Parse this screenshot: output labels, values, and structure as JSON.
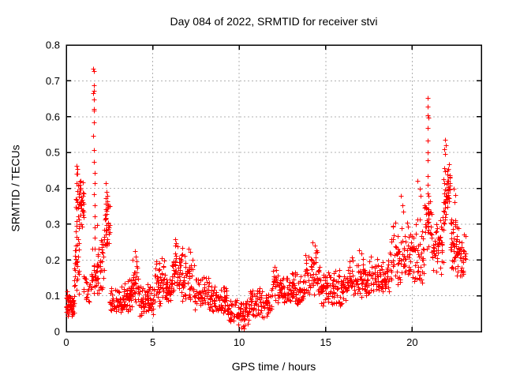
{
  "figure": {
    "title": "Day 084 of 2022, SRMTID for receiver stvi",
    "xlabel": "GPS time / hours",
    "ylabel": "SRMTID / TECUs"
  },
  "chart_data": {
    "type": "scatter",
    "title": "Day 084 of 2022, SRMTID for receiver stvi",
    "xlabel": "GPS time / hours",
    "ylabel": "SRMTID / TECUs",
    "series_name": "SRMTID",
    "xlim": [
      0,
      24
    ],
    "ylim": [
      0,
      0.8
    ],
    "xticks": [
      0,
      5,
      10,
      15,
      20
    ],
    "xtick_labels": [
      "0",
      "5",
      "10",
      "15",
      "20"
    ],
    "yticks": [
      0,
      0.1,
      0.2,
      0.3,
      0.4,
      0.5,
      0.6,
      0.7,
      0.8
    ],
    "ytick_labels": [
      "0",
      "0.1",
      "0.2",
      "0.3",
      "0.4",
      "0.5",
      "0.6",
      "0.7",
      "0.8"
    ],
    "grid": true,
    "legend": "none",
    "marker": "plus",
    "marker_color": "#ff0000",
    "grid_color": "#b0b0b0",
    "axis_color": "#000000",
    "background_color": "#ffffff",
    "band_segments": [
      [
        0.0,
        0.45,
        0.03,
        0.12,
        60
      ],
      [
        0.45,
        0.75,
        0.1,
        0.3,
        30
      ],
      [
        0.55,
        1.0,
        0.28,
        0.46,
        55
      ],
      [
        0.95,
        1.45,
        0.07,
        0.18,
        25
      ],
      [
        1.45,
        1.8,
        0.1,
        0.25,
        25
      ],
      [
        1.75,
        2.2,
        0.1,
        0.32,
        40
      ],
      [
        2.2,
        2.5,
        0.22,
        0.4,
        35
      ],
      [
        2.5,
        3.3,
        0.05,
        0.13,
        55
      ],
      [
        3.3,
        3.8,
        0.05,
        0.16,
        45
      ],
      [
        3.8,
        4.2,
        0.08,
        0.215,
        35
      ],
      [
        4.2,
        5.1,
        0.04,
        0.14,
        65
      ],
      [
        5.1,
        5.7,
        0.07,
        0.22,
        45
      ],
      [
        5.7,
        6.1,
        0.07,
        0.17,
        35
      ],
      [
        6.1,
        6.7,
        0.1,
        0.25,
        50
      ],
      [
        6.7,
        7.4,
        0.08,
        0.225,
        50
      ],
      [
        7.4,
        8.6,
        0.05,
        0.16,
        80
      ],
      [
        8.6,
        9.3,
        0.04,
        0.145,
        50
      ],
      [
        9.3,
        10.6,
        0.015,
        0.1,
        85
      ],
      [
        10.6,
        11.9,
        0.04,
        0.13,
        85
      ],
      [
        11.9,
        12.6,
        0.07,
        0.2,
        50
      ],
      [
        12.6,
        13.8,
        0.07,
        0.17,
        80
      ],
      [
        13.8,
        14.7,
        0.09,
        0.235,
        60
      ],
      [
        14.7,
        16.3,
        0.07,
        0.18,
        100
      ],
      [
        16.3,
        17.6,
        0.09,
        0.21,
        80
      ],
      [
        17.6,
        18.7,
        0.1,
        0.22,
        70
      ],
      [
        18.7,
        19.7,
        0.12,
        0.33,
        65
      ],
      [
        19.7,
        20.7,
        0.13,
        0.33,
        65
      ],
      [
        20.7,
        21.1,
        0.22,
        0.42,
        30
      ],
      [
        21.1,
        21.8,
        0.15,
        0.35,
        55
      ],
      [
        21.8,
        22.2,
        0.28,
        0.5,
        45
      ],
      [
        22.2,
        22.7,
        0.15,
        0.35,
        45
      ],
      [
        22.7,
        23.1,
        0.15,
        0.3,
        30
      ]
    ],
    "spike_points": [
      [
        0.6,
        0.462
      ],
      [
        0.63,
        0.455
      ],
      [
        0.66,
        0.44
      ],
      [
        1.57,
        0.733
      ],
      [
        1.6,
        0.728
      ],
      [
        1.58,
        0.688
      ],
      [
        1.59,
        0.672
      ],
      [
        1.57,
        0.665
      ],
      [
        1.6,
        0.649
      ],
      [
        1.58,
        0.622
      ],
      [
        1.6,
        0.616
      ],
      [
        1.59,
        0.583
      ],
      [
        1.57,
        0.546
      ],
      [
        1.58,
        0.506
      ],
      [
        1.6,
        0.474
      ],
      [
        1.62,
        0.444
      ],
      [
        1.63,
        0.414
      ],
      [
        1.61,
        0.384
      ],
      [
        1.62,
        0.352
      ],
      [
        1.64,
        0.322
      ],
      [
        1.62,
        0.292
      ],
      [
        1.63,
        0.262
      ],
      [
        1.65,
        0.232
      ],
      [
        2.3,
        0.414
      ],
      [
        2.33,
        0.39
      ],
      [
        2.28,
        0.356
      ],
      [
        3.98,
        0.225
      ],
      [
        4.02,
        0.21
      ],
      [
        6.28,
        0.258
      ],
      [
        6.35,
        0.247
      ],
      [
        6.45,
        0.238
      ],
      [
        7.05,
        0.232
      ],
      [
        7.15,
        0.222
      ],
      [
        10.12,
        0.012
      ],
      [
        10.2,
        0.016
      ],
      [
        10.28,
        0.009
      ],
      [
        14.25,
        0.248
      ],
      [
        14.35,
        0.24
      ],
      [
        14.45,
        0.228
      ],
      [
        16.95,
        0.228
      ],
      [
        17.05,
        0.218
      ],
      [
        19.35,
        0.38
      ],
      [
        19.42,
        0.352
      ],
      [
        19.5,
        0.335
      ],
      [
        20.32,
        0.42
      ],
      [
        20.42,
        0.398
      ],
      [
        20.5,
        0.378
      ],
      [
        20.9,
        0.652
      ],
      [
        20.92,
        0.628
      ],
      [
        20.89,
        0.603
      ],
      [
        20.93,
        0.597
      ],
      [
        20.9,
        0.569
      ],
      [
        20.91,
        0.533
      ],
      [
        20.89,
        0.5
      ],
      [
        20.92,
        0.478
      ],
      [
        20.9,
        0.434
      ],
      [
        20.88,
        0.41
      ],
      [
        20.91,
        0.385
      ],
      [
        20.93,
        0.36
      ],
      [
        20.9,
        0.332
      ],
      [
        20.92,
        0.305
      ],
      [
        20.89,
        0.278
      ],
      [
        21.9,
        0.535
      ],
      [
        21.94,
        0.521
      ],
      [
        21.87,
        0.508
      ],
      [
        21.92,
        0.496
      ],
      [
        22.42,
        0.398
      ],
      [
        22.5,
        0.382
      ],
      [
        22.46,
        0.362
      ]
    ]
  }
}
